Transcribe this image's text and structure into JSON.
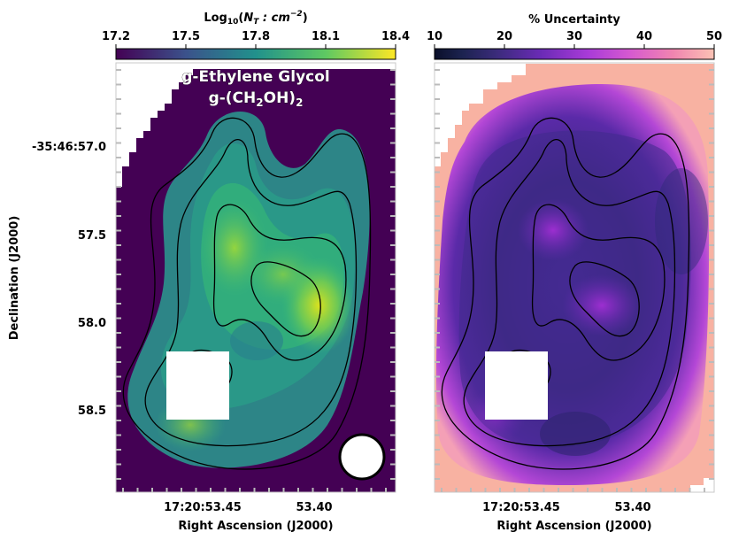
{
  "chart_data": [
    {
      "type": "heatmap",
      "panel": "left",
      "title_line1": "g-Ethylene Glycol",
      "title_line2_prefix": "g-(CH",
      "title_line2_sub1": "2",
      "title_line2_mid": "OH)",
      "title_line2_sub2": "2",
      "colormap": "viridis",
      "colorbar": {
        "label_prefix": "Log",
        "label_sub": "10",
        "label_mid": "(",
        "label_italic": "N",
        "label_italic_sub": "T",
        "label_suffix": " : cm",
        "label_sup": "−2",
        "label_close": ")",
        "range": [
          17.2,
          18.4
        ],
        "ticks": [
          "17.2",
          "17.5",
          "17.8",
          "18.1",
          "18.4"
        ]
      },
      "xlabel": "Right Ascension (J2000)",
      "ylabel": "Declination (J2000)",
      "x_ticks": [
        "17:20:53.45",
        "53.40"
      ],
      "y_ticks": [
        "-35:46:57.0",
        "57.5",
        "58.0",
        "58.5"
      ],
      "peak_value": 18.35,
      "edge_value": 17.4
    },
    {
      "type": "heatmap",
      "panel": "right",
      "colormap": "magma",
      "colorbar": {
        "label": "% Uncertainty",
        "range": [
          10,
          50
        ],
        "ticks": [
          "10",
          "20",
          "30",
          "40",
          "50"
        ]
      },
      "xlabel": "Right Ascension (J2000)",
      "x_ticks": [
        "17:20:53.45",
        "53.40"
      ],
      "center_value": 24,
      "edge_value": 50
    }
  ],
  "colors": {
    "viridis": [
      "#440154",
      "#3b528b",
      "#21918c",
      "#5ec962",
      "#fde725"
    ],
    "magma": [
      "#000004",
      "#3b0f70",
      "#8c2981",
      "#de4968",
      "#fe9f6d",
      "#fcfdbf"
    ],
    "contour": "#000000",
    "beam": "#ffffff"
  }
}
